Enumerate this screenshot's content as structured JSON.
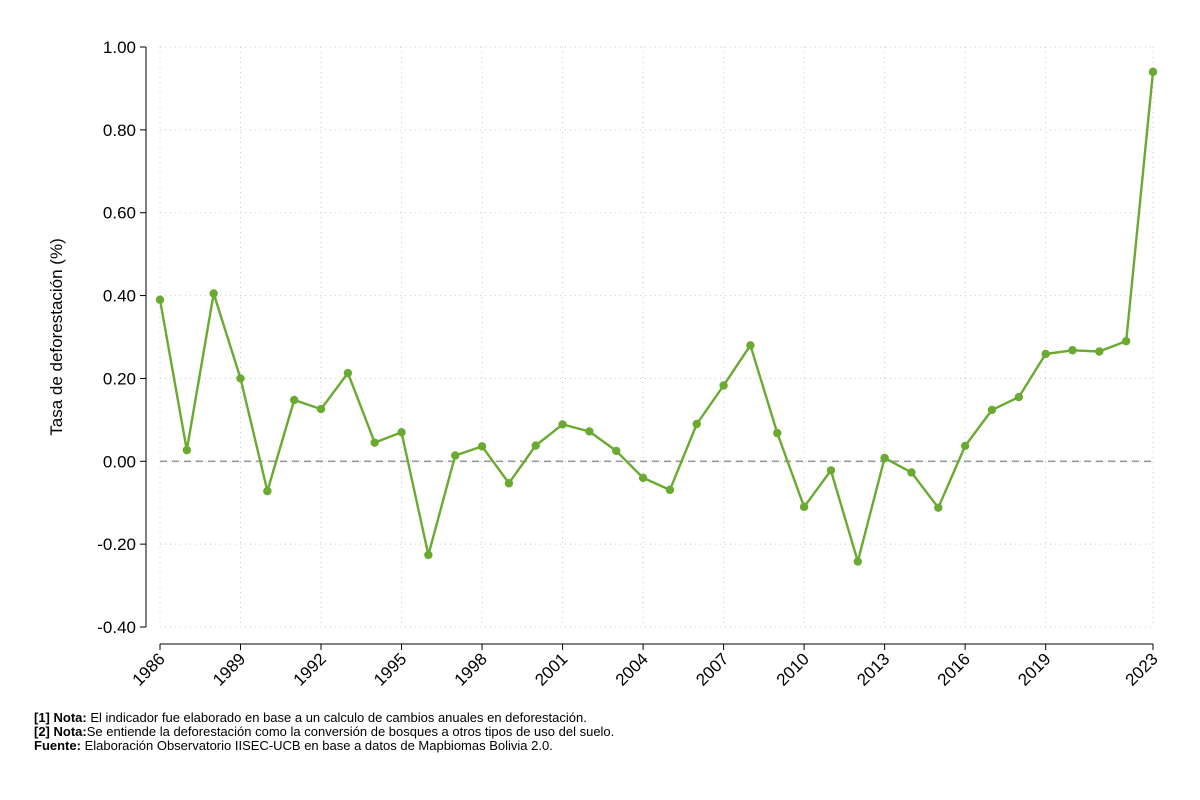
{
  "chart_data": {
    "type": "line",
    "title": "",
    "xlabel": "",
    "ylabel": "Tasa de deforestación (%)",
    "ylim": [
      -0.4,
      1.0
    ],
    "yticks": [
      -0.4,
      -0.2,
      0.0,
      0.2,
      0.4,
      0.6,
      0.8,
      1.0
    ],
    "ytick_labels": [
      "-0.40",
      "-0.20",
      "0.00",
      "0.20",
      "0.40",
      "0.60",
      "0.80",
      "1.00"
    ],
    "xlim": [
      1986,
      2023
    ],
    "xtick_labels": [
      "1986",
      "1989",
      "1992",
      "1995",
      "1998",
      "2001",
      "2004",
      "2007",
      "2010",
      "2013",
      "2016",
      "2019",
      "2023"
    ],
    "grid": true,
    "reference_line": 0.0,
    "line_color": "#6aaa30",
    "x": [
      1986,
      1987,
      1988,
      1989,
      1990,
      1991,
      1992,
      1993,
      1994,
      1995,
      1996,
      1997,
      1998,
      1999,
      2000,
      2001,
      2002,
      2003,
      2004,
      2005,
      2006,
      2007,
      2008,
      2009,
      2010,
      2011,
      2012,
      2013,
      2014,
      2015,
      2016,
      2017,
      2018,
      2019,
      2020,
      2021,
      2022,
      2023
    ],
    "y": [
      0.39,
      0.027,
      0.405,
      0.2,
      -0.072,
      0.148,
      0.126,
      0.213,
      0.045,
      0.07,
      -0.226,
      0.014,
      0.036,
      -0.053,
      0.038,
      0.089,
      0.072,
      0.025,
      -0.04,
      -0.069,
      0.09,
      0.183,
      0.28,
      0.068,
      -0.11,
      -0.022,
      -0.242,
      0.008,
      -0.027,
      -0.112,
      0.037,
      0.124,
      0.155,
      0.259,
      0.268,
      0.265,
      0.29,
      0.94
    ]
  },
  "notes": [
    {
      "label": "[1] Nota:",
      "text": " El indicador fue elaborado en base a un calculo de cambios anuales en deforestación."
    },
    {
      "label": "[2] Nota:",
      "text": "Se entiende la deforestación como la conversión de bosques a otros tipos de uso del suelo."
    },
    {
      "label": "Fuente:",
      "text": " Elaboración Observatorio IISEC-UCB en base a datos de Mapbiomas Bolivia 2.0."
    }
  ]
}
